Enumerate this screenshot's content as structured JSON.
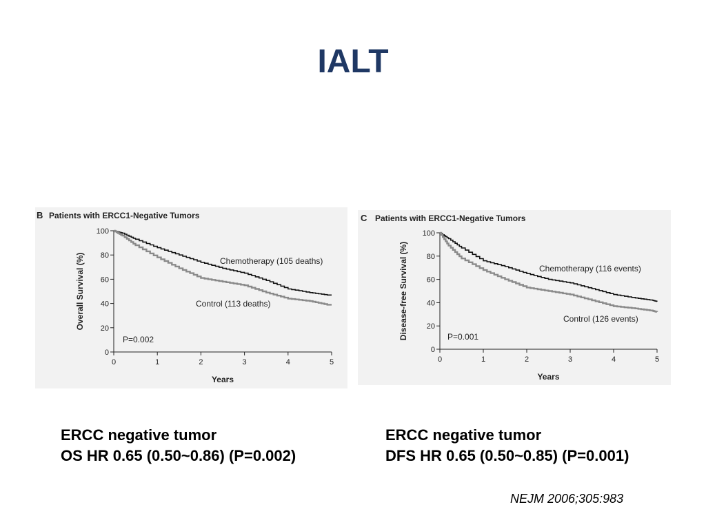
{
  "slide": {
    "title": "IALT",
    "caption_left": {
      "line1": "ERCC negative tumor",
      "line2": "OS HR 0.65 (0.50~0.86) (P=0.002)"
    },
    "caption_right": {
      "line1": "ERCC negative tumor",
      "line2": "DFS HR 0.65 (0.50~0.85) (P=0.001)"
    },
    "citation": "NEJM 2006;305:983"
  },
  "colors": {
    "title": "#1f3864",
    "chemo": "#111111",
    "control": "#8a8a8a",
    "panel_bg": "#f2f2f2"
  },
  "chart_data": [
    {
      "type": "line",
      "panel_letter": "B",
      "title": "Patients with ERCC1-Negative Tumors",
      "xlabel": "Years",
      "ylabel": "Overall Survival (%)",
      "xlim": [
        0,
        5
      ],
      "ylim": [
        0,
        100
      ],
      "xticks": [
        0,
        1,
        2,
        3,
        4,
        5
      ],
      "yticks": [
        0,
        20,
        40,
        60,
        80,
        100
      ],
      "p_value": "P=0.002",
      "series": [
        {
          "name": "Chemotherapy (105 deaths)",
          "color_key": "chemo",
          "x": [
            0,
            0.2,
            0.5,
            1.0,
            1.5,
            2.0,
            2.5,
            3.0,
            3.5,
            4.0,
            4.5,
            4.9,
            5.0
          ],
          "y": [
            100,
            98,
            93,
            86,
            80,
            74,
            69,
            65,
            59,
            52,
            49,
            47,
            47
          ]
        },
        {
          "name": "Control (113 deaths)",
          "color_key": "control",
          "x": [
            0,
            0.2,
            0.5,
            1.0,
            1.5,
            2.0,
            2.5,
            3.0,
            3.5,
            4.0,
            4.5,
            4.9,
            5.0
          ],
          "y": [
            100,
            96,
            88,
            78,
            69,
            61,
            58,
            55,
            49,
            44,
            42,
            39,
            39
          ]
        }
      ]
    },
    {
      "type": "line",
      "panel_letter": "C",
      "title": "Patients with ERCC1-Negative Tumors",
      "xlabel": "Years",
      "ylabel": "Disease-free Survival (%)",
      "xlim": [
        0,
        5
      ],
      "ylim": [
        0,
        100
      ],
      "xticks": [
        0,
        1,
        2,
        3,
        4,
        5
      ],
      "yticks": [
        0,
        20,
        40,
        60,
        80,
        100
      ],
      "p_value": "P=0.001",
      "series": [
        {
          "name": "Chemotherapy (116 events)",
          "color_key": "chemo",
          "x": [
            0,
            0.2,
            0.5,
            1.0,
            1.5,
            2.0,
            2.5,
            3.0,
            3.5,
            4.0,
            4.5,
            4.9,
            5.0
          ],
          "y": [
            100,
            95,
            87,
            76,
            71,
            65,
            60,
            57,
            52,
            47,
            44,
            42,
            41
          ]
        },
        {
          "name": "Control (126 events)",
          "color_key": "control",
          "x": [
            0,
            0.2,
            0.5,
            1.0,
            1.5,
            2.0,
            2.5,
            3.0,
            3.5,
            4.0,
            4.5,
            4.9,
            5.0
          ],
          "y": [
            100,
            89,
            78,
            68,
            60,
            53,
            50,
            47,
            42,
            37,
            35,
            33,
            32
          ]
        }
      ]
    }
  ]
}
